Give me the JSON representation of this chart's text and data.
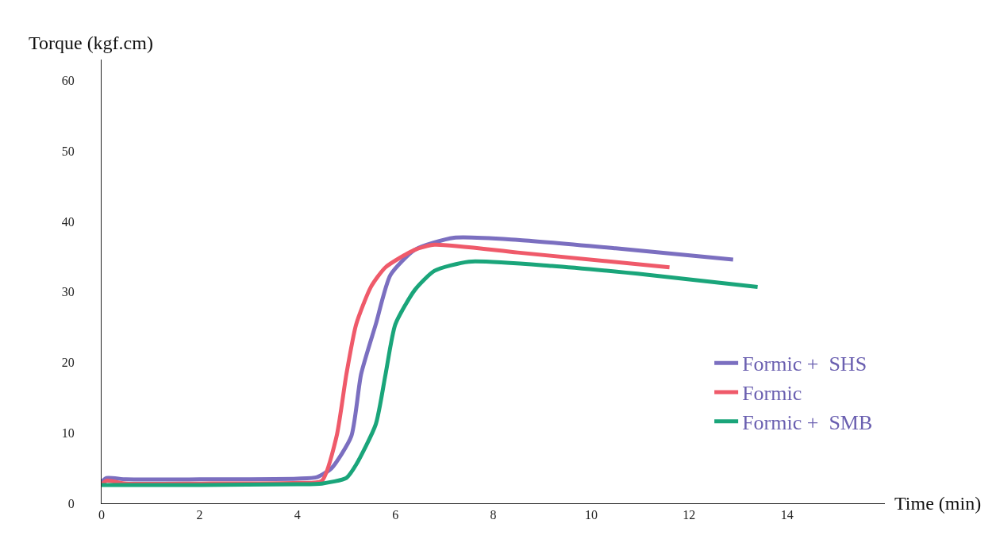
{
  "chart_data": {
    "type": "line",
    "xlabel": "Time (min)",
    "ylabel": "Torque (kgf.cm)",
    "xlim": [
      0,
      16
    ],
    "xticks": [
      0,
      2,
      4,
      6,
      8,
      10,
      12,
      14
    ],
    "ylim": [
      0,
      63
    ],
    "yticks": [
      0,
      10,
      20,
      30,
      40,
      50,
      60
    ],
    "grid": false,
    "legend": "right",
    "marker": "none",
    "line_style": "solid",
    "series": [
      {
        "name": "Formic +  SHS",
        "color": "#7b6fc0",
        "x": [
          0,
          0.1,
          0.5,
          2,
          4,
          4.4,
          4.7,
          5.1,
          5.3,
          5.6,
          5.9,
          6.4,
          7.2,
          8.5,
          10.5,
          12.9
        ],
        "values": [
          3.0,
          3.6,
          3.4,
          3.4,
          3.5,
          3.7,
          5,
          9.5,
          18.3,
          25.4,
          32.4,
          36,
          37.7,
          37.4,
          36.2,
          34.6
        ]
      },
      {
        "name": "Formic",
        "color": "#ef5a6a",
        "x": [
          0,
          0.1,
          0.5,
          2,
          4,
          4.5,
          4.8,
          5.0,
          5.2,
          5.5,
          5.8,
          6.4,
          6.8,
          8.5,
          11.6
        ],
        "values": [
          2.6,
          3.2,
          2.8,
          2.8,
          2.9,
          3.2,
          9.5,
          18.3,
          25.4,
          30.7,
          33.5,
          36,
          36.7,
          35.6,
          33.5
        ]
      },
      {
        "name": "Formic +  SMB",
        "color": "#1aa57a",
        "x": [
          0,
          0.5,
          2,
          4,
          4.5,
          5.0,
          5.2,
          5.6,
          5.8,
          6.0,
          6.4,
          6.8,
          7.5,
          9.2,
          11.2,
          13.4
        ],
        "values": [
          2.6,
          2.6,
          2.6,
          2.7,
          2.8,
          3.6,
          5.5,
          11.2,
          18.3,
          25.4,
          30.3,
          33,
          34.3,
          33.7,
          32.4,
          30.7
        ]
      }
    ]
  }
}
